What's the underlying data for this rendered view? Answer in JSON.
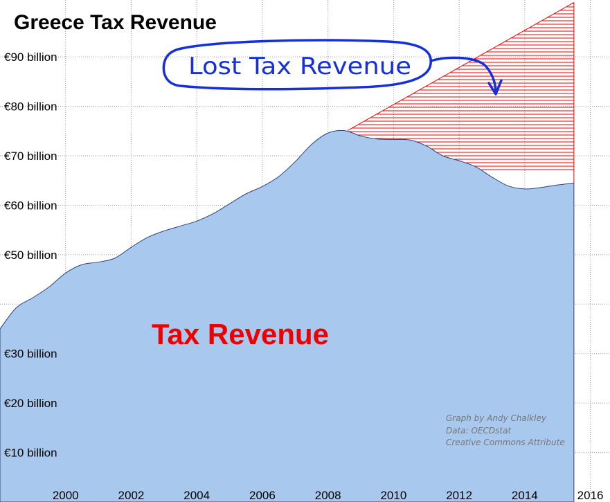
{
  "chart_data": {
    "type": "area",
    "title": "Greece Tax Revenue",
    "xlabel": "",
    "ylabel": "",
    "xlim": [
      1998.0,
      2016.6
    ],
    "ylim": [
      0,
      101.5
    ],
    "x_ticks": [
      2000,
      2002,
      2004,
      2006,
      2008,
      2010,
      2012,
      2014,
      2016
    ],
    "x_tick_labels": [
      "2000",
      "2002",
      "2004",
      "2006",
      "2008",
      "2010",
      "2012",
      "2014",
      "2016"
    ],
    "y_ticks": [
      10,
      20,
      30,
      40,
      50,
      60,
      70,
      80,
      90
    ],
    "y_tick_labels": [
      "€10 billion",
      "€20 billion",
      "€30 billion",
      "",
      "€50 billion",
      "€60 billion",
      "€70 billion",
      "€80 billion",
      "€90 billion"
    ],
    "grid": true,
    "series": [
      {
        "name": "Tax Revenue",
        "color": "#a8c8ee",
        "x": [
          1998.0,
          1998.5,
          1999.0,
          1999.5,
          2000.0,
          2000.5,
          2001.0,
          2001.5,
          2002.0,
          2002.5,
          2003.0,
          2003.5,
          2004.0,
          2004.5,
          2005.0,
          2005.5,
          2006.0,
          2006.5,
          2007.0,
          2007.5,
          2008.0,
          2008.5,
          2009.0,
          2009.5,
          2010.0,
          2010.5,
          2011.0,
          2011.5,
          2012.0,
          2012.5,
          2013.0,
          2013.5,
          2014.0,
          2014.5,
          2015.0,
          2015.5
        ],
        "values": [
          35.0,
          39.3,
          41.3,
          43.5,
          46.3,
          48.0,
          48.5,
          49.3,
          51.5,
          53.5,
          54.8,
          55.8,
          56.8,
          58.3,
          60.3,
          62.3,
          63.8,
          65.8,
          68.8,
          72.3,
          74.6,
          75.1,
          74.0,
          73.4,
          73.3,
          73.2,
          72.0,
          70.0,
          69.0,
          67.8,
          65.7,
          63.9,
          63.3,
          63.6,
          64.1,
          64.5
        ]
      },
      {
        "name": "Lost Tax Revenue",
        "color": "#ee0000",
        "x": [
          2008.6,
          2015.5
        ],
        "values": [
          75.1,
          101.0
        ]
      }
    ],
    "annotations": {
      "area_label": "Tax Revenue",
      "lost_label": "Lost Tax Revenue",
      "credits": [
        "Graph by Andy Chalkley",
        "Data: OECDstat",
        "Creative Commons Attribute"
      ]
    }
  }
}
